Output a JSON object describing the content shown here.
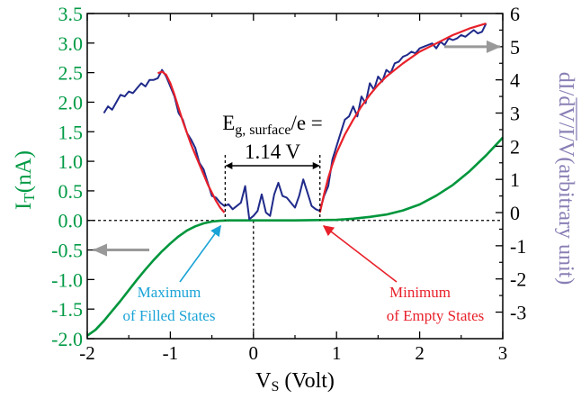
{
  "chart_data": {
    "type": "line",
    "xlabel": "V",
    "xlabel_sub": "S",
    "xlabel_tail": " (Volt)",
    "xlim": [
      -2,
      3
    ],
    "x_ticks": [
      "-2",
      "-1",
      "0",
      "1",
      "2",
      "3"
    ],
    "ylabel_left": "I",
    "ylabel_left_sub": "T",
    "ylabel_left_tail": "(nA)",
    "ylim_left": [
      -2.0,
      3.5
    ],
    "y_ticks_left": [
      "-2.0",
      "-1.5",
      "-1.0",
      "-0.5",
      "0.0",
      "0.5",
      "1.0",
      "1.5",
      "2.0",
      "2.5",
      "3.0",
      "3.5"
    ],
    "ylabel_right": "dI/dV/I/V(arbitrary unit)",
    "ylim_right": [
      -3.8,
      6
    ],
    "y_ticks_right": [
      "-3",
      "-2",
      "-1",
      "0",
      "1",
      "2",
      "3",
      "4",
      "5",
      "6"
    ],
    "colors": {
      "current": "#00963c",
      "didv": "#1f2a8a",
      "fit": "#e8202a",
      "left_axis": "#009a44",
      "right_axis": "#8a7fb5",
      "arrow": "#999999",
      "filled_label": "#1aa3d6",
      "empty_label": "#e8202a"
    },
    "series": [
      {
        "axis": "left",
        "x": [
          -2.0,
          -1.9,
          -1.8,
          -1.7,
          -1.6,
          -1.5,
          -1.4,
          -1.3,
          -1.2,
          -1.1,
          -1.0,
          -0.9,
          -0.8,
          -0.7,
          -0.6,
          -0.5,
          -0.4,
          -0.3,
          -0.2,
          0.0,
          0.5,
          1.0,
          1.2,
          1.4,
          1.6,
          1.8,
          2.0,
          2.2,
          2.4,
          2.6,
          2.8,
          3.0
        ],
        "values": [
          -1.95,
          -1.85,
          -1.7,
          -1.53,
          -1.36,
          -1.18,
          -1.0,
          -0.83,
          -0.67,
          -0.52,
          -0.39,
          -0.27,
          -0.17,
          -0.1,
          -0.05,
          -0.02,
          -0.005,
          0.0,
          0.0,
          0.0,
          0.0,
          0.01,
          0.03,
          0.06,
          0.1,
          0.17,
          0.27,
          0.42,
          0.6,
          0.83,
          1.1,
          1.4
        ]
      },
      {
        "axis": "right",
        "x": [
          -1.8,
          -1.75,
          -1.7,
          -1.6,
          -1.55,
          -1.5,
          -1.45,
          -1.4,
          -1.35,
          -1.3,
          -1.25,
          -1.2,
          -1.15,
          -1.1,
          -1.05,
          -1.0,
          -0.95,
          -0.9,
          -0.85,
          -0.8,
          -0.75,
          -0.7,
          -0.65,
          -0.6,
          -0.55,
          -0.5,
          -0.45,
          -0.4,
          -0.35,
          -0.3,
          -0.25,
          -0.2,
          -0.15,
          -0.1,
          -0.05,
          0.0,
          0.05,
          0.1,
          0.15,
          0.2,
          0.25,
          0.3,
          0.35,
          0.4,
          0.45,
          0.5,
          0.55,
          0.6,
          0.65,
          0.7,
          0.75,
          0.8,
          0.85,
          0.9,
          0.95,
          1.0,
          1.05,
          1.1,
          1.15,
          1.2,
          1.25,
          1.3,
          1.35,
          1.4,
          1.45,
          1.5,
          1.55,
          1.6,
          1.65,
          1.7,
          1.75,
          1.8,
          1.85,
          1.9,
          1.95,
          2.0,
          2.05,
          2.1,
          2.15,
          2.2,
          2.25,
          2.3,
          2.35,
          2.4,
          2.45,
          2.5,
          2.55,
          2.6,
          2.65,
          2.7,
          2.75,
          2.8
        ],
        "values": [
          3.0,
          3.2,
          3.1,
          3.55,
          3.5,
          3.65,
          3.6,
          3.75,
          3.9,
          3.8,
          4.0,
          4.0,
          4.05,
          4.3,
          4.1,
          3.8,
          3.5,
          3.0,
          2.8,
          2.4,
          2.2,
          1.95,
          1.5,
          1.3,
          0.9,
          0.5,
          0.45,
          0.3,
          0.2,
          0.25,
          0.1,
          0.2,
          0.3,
          0.8,
          -0.2,
          -0.1,
          0.05,
          0.55,
          0.0,
          -0.1,
          0.55,
          0.9,
          0.5,
          0.45,
          0.3,
          0.15,
          0.5,
          1.0,
          0.6,
          0.2,
          0.1,
          0.05,
          0.5,
          0.8,
          1.6,
          2.0,
          2.4,
          2.8,
          2.9,
          3.2,
          2.9,
          3.5,
          3.3,
          3.9,
          3.7,
          4.1,
          3.95,
          4.3,
          4.2,
          4.5,
          4.55,
          4.7,
          4.75,
          4.85,
          4.8,
          4.95,
          5.0,
          5.05,
          5.1,
          4.95,
          5.15,
          5.05,
          5.25,
          5.2,
          5.25,
          5.35,
          5.3,
          5.4,
          5.5,
          5.4,
          5.45,
          5.7
        ]
      },
      {
        "axis": "right",
        "x": [
          -1.15,
          -1.1,
          -1.05,
          -1.0,
          -0.95,
          -0.9,
          -0.85,
          -0.8,
          -0.75,
          -0.7,
          -0.65,
          -0.6,
          -0.55,
          -0.5,
          -0.45,
          -0.4,
          -0.35
        ],
        "values": [
          4.2,
          4.25,
          4.15,
          3.9,
          3.55,
          3.15,
          2.75,
          2.4,
          2.05,
          1.75,
          1.45,
          1.15,
          0.85,
          0.6,
          0.35,
          0.15,
          0.0
        ]
      },
      {
        "axis": "right",
        "x": [
          0.8,
          0.85,
          0.9,
          0.95,
          1.0,
          1.1,
          1.2,
          1.3,
          1.4,
          1.5,
          1.6,
          1.8,
          2.0,
          2.2,
          2.4,
          2.6,
          2.8
        ],
        "values": [
          0.0,
          0.55,
          1.05,
          1.45,
          1.8,
          2.35,
          2.8,
          3.2,
          3.55,
          3.85,
          4.1,
          4.5,
          4.85,
          5.1,
          5.35,
          5.55,
          5.7
        ]
      }
    ],
    "annotations": {
      "gap_label_main": "E",
      "gap_label_sub": "g, surface",
      "gap_label_tail": "/e =",
      "gap_value": "1.14 V",
      "gap_start": -0.34,
      "gap_end": 0.8,
      "filled_label_line1": "Maximum",
      "filled_label_line2": "of Filled States",
      "empty_label_line1": "Minimum",
      "empty_label_line2": "of Empty States"
    }
  }
}
